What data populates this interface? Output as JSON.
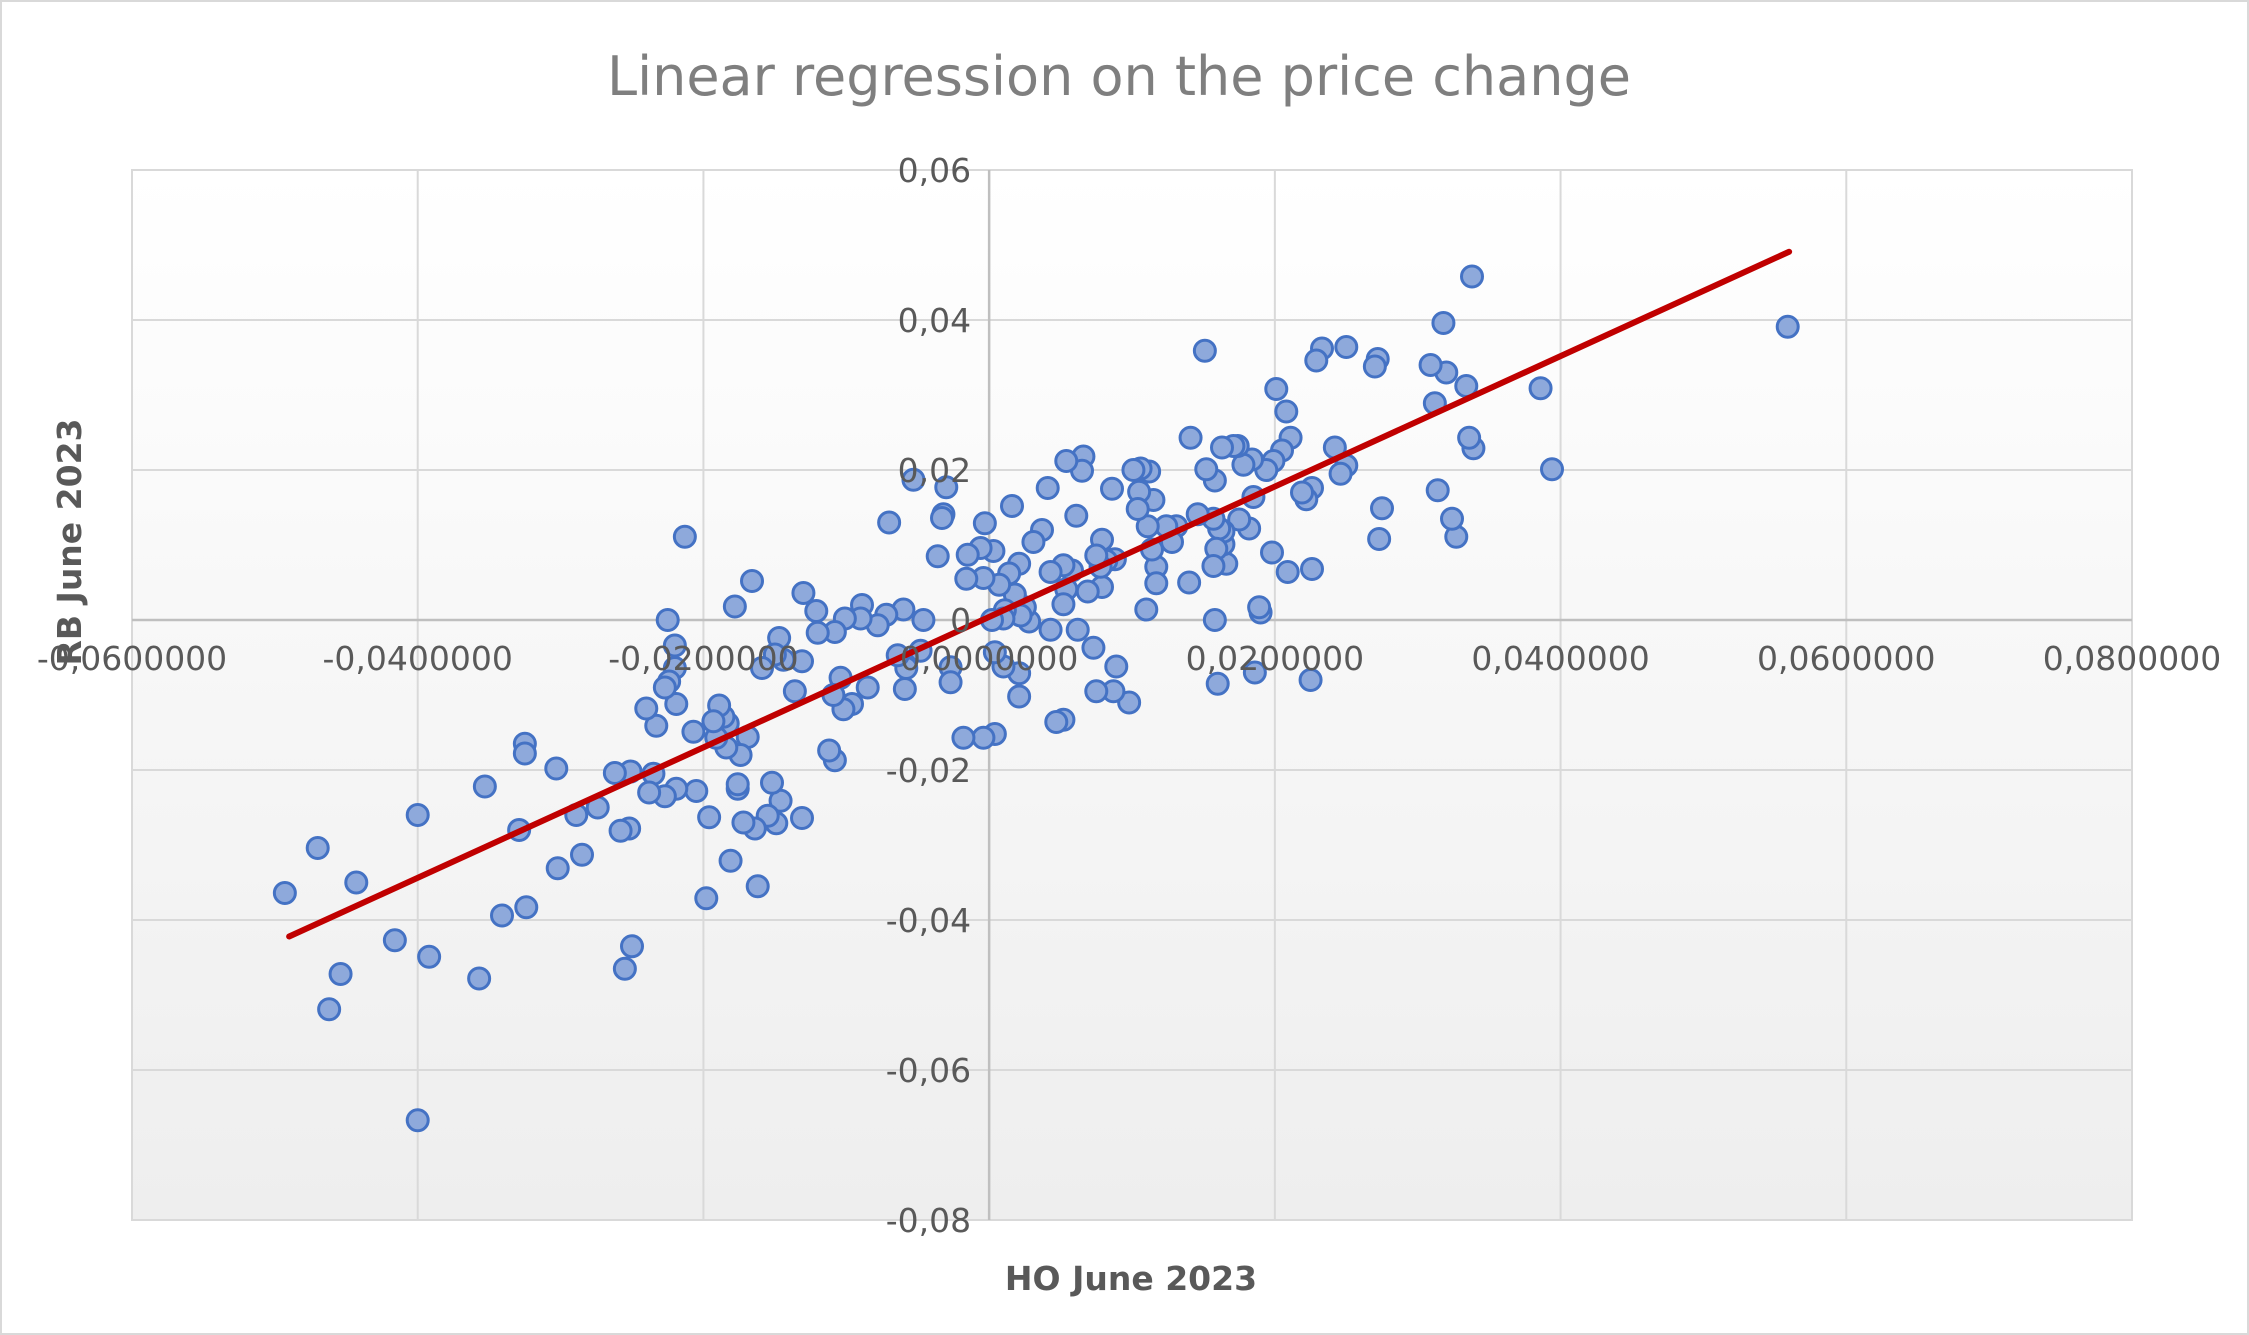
{
  "chart_data": {
    "type": "scatter",
    "title": "Linear regression on the price change",
    "xlabel": "HO June 2023",
    "ylabel": "RB June 2023",
    "xlim": [
      -0.06,
      0.08
    ],
    "ylim": [
      -0.08,
      0.06
    ],
    "xticks": [
      -0.06,
      -0.04,
      -0.02,
      0,
      0.02,
      0.04,
      0.06,
      0.08
    ],
    "xtick_labels": [
      "-0,0600000",
      "-0,0400000",
      "-0,0200000",
      "0,0000000",
      "0,0200000",
      "0,0400000",
      "0,0600000",
      "0,0800000"
    ],
    "yticks": [
      0.06,
      0.04,
      0.02,
      0,
      -0.02,
      -0.04,
      -0.06,
      -0.08
    ],
    "ytick_labels": [
      "0,06",
      "0,04",
      "0,02",
      "0",
      "-0,02",
      "-0,04",
      "-0,06",
      "-0,08"
    ],
    "grid": true,
    "legend": "none",
    "colors": {
      "marker_fill": "#8ea9db",
      "marker_edge": "#4472c4",
      "trendline": "#c00000"
    },
    "trendline": {
      "x": [
        -0.049,
        0.056
      ],
      "y": [
        -0.0422,
        0.0491
      ]
    },
    "points": [
      [
        0.0559,
        0.0391
      ],
      [
        0.0394,
        0.0201
      ],
      [
        0.0386,
        0.0309
      ],
      [
        0.0338,
        0.0458
      ],
      [
        0.0339,
        0.0229
      ],
      [
        0.0336,
        0.0243
      ],
      [
        0.0334,
        0.0312
      ],
      [
        0.0327,
        0.0111
      ],
      [
        0.0324,
        0.0135
      ],
      [
        0.032,
        0.033
      ],
      [
        0.0318,
        0.0396
      ],
      [
        0.0314,
        0.0173
      ],
      [
        0.0312,
        0.0289
      ],
      [
        0.0309,
        0.034
      ],
      [
        0.0275,
        0.0149
      ],
      [
        0.0273,
        0.0108
      ],
      [
        0.0272,
        0.0348
      ],
      [
        0.027,
        0.0338
      ],
      [
        0.025,
        0.0364
      ],
      [
        0.025,
        0.0206
      ],
      [
        0.0246,
        0.0195
      ],
      [
        0.0242,
        0.023
      ],
      [
        0.0233,
        0.0362
      ],
      [
        0.0229,
        0.0346
      ],
      [
        0.0226,
        0.0068
      ],
      [
        0.0226,
        0.0176
      ],
      [
        0.0225,
        -0.008
      ],
      [
        0.0222,
        0.0161
      ],
      [
        0.0219,
        0.017
      ],
      [
        0.0211,
        0.0243
      ],
      [
        0.0209,
        0.0064
      ],
      [
        0.0208,
        0.0278
      ],
      [
        0.0205,
        0.0226
      ],
      [
        0.0201,
        0.0308
      ],
      [
        0.0199,
        0.0212
      ],
      [
        0.0198,
        0.009
      ],
      [
        0.0194,
        0.02
      ],
      [
        0.019,
        0.001
      ],
      [
        0.0189,
        0.0017
      ],
      [
        0.0186,
        -0.007
      ],
      [
        0.0185,
        0.0164
      ],
      [
        0.0184,
        0.0214
      ],
      [
        0.0182,
        0.0122
      ],
      [
        0.0178,
        0.0207
      ],
      [
        0.0175,
        0.0134
      ],
      [
        0.0174,
        0.0232
      ],
      [
        0.0171,
        0.0232
      ],
      [
        0.0166,
        0.0075
      ],
      [
        0.0164,
        0.0101
      ],
      [
        0.0164,
        0.0118
      ],
      [
        0.0163,
        0.023
      ],
      [
        0.0161,
        0.0122
      ],
      [
        0.016,
        -0.0085
      ],
      [
        0.0159,
        0.0095
      ],
      [
        0.0158,
        0.0186
      ],
      [
        0.0158,
        0.0
      ],
      [
        0.0157,
        0.0135
      ],
      [
        0.0157,
        0.0072
      ],
      [
        0.0152,
        0.0201
      ],
      [
        0.0151,
        0.0359
      ],
      [
        0.0146,
        0.0141
      ],
      [
        0.0141,
        0.0243
      ],
      [
        0.014,
        0.005
      ],
      [
        0.0131,
        0.0125
      ],
      [
        0.0128,
        0.0104
      ],
      [
        0.0124,
        0.0125
      ],
      [
        0.0117,
        0.0071
      ],
      [
        0.0117,
        0.0049
      ],
      [
        0.0115,
        0.016
      ],
      [
        0.0114,
        0.0094
      ],
      [
        0.0112,
        0.0198
      ],
      [
        0.0111,
        0.0125
      ],
      [
        0.011,
        0.0014
      ],
      [
        0.0106,
        0.0202
      ],
      [
        0.0105,
        0.0171
      ],
      [
        0.0104,
        0.0148
      ],
      [
        0.0101,
        0.02
      ],
      [
        0.0098,
        -0.011
      ],
      [
        0.0089,
        -0.0062
      ],
      [
        0.0088,
        0.0081
      ],
      [
        0.0087,
        -0.0095
      ],
      [
        0.0086,
        0.0175
      ],
      [
        0.0082,
        0.0079
      ],
      [
        0.0079,
        0.0044
      ],
      [
        0.0079,
        0.0107
      ],
      [
        0.0078,
        0.0071
      ],
      [
        0.0075,
        0.0086
      ],
      [
        0.0075,
        -0.0095
      ],
      [
        0.0073,
        -0.0037
      ],
      [
        0.0069,
        0.0038
      ],
      [
        0.0066,
        0.0218
      ],
      [
        0.0065,
        0.0199
      ],
      [
        0.0062,
        -0.0013
      ],
      [
        0.0061,
        0.0139
      ],
      [
        0.0058,
        0.0066
      ],
      [
        0.0054,
        0.0041
      ],
      [
        0.0054,
        0.0212
      ],
      [
        0.0052,
        0.0021
      ],
      [
        0.0052,
        0.0073
      ],
      [
        0.0052,
        -0.0133
      ],
      [
        0.0047,
        -0.0136
      ],
      [
        0.0043,
        0.0064
      ],
      [
        0.0043,
        -0.0013
      ],
      [
        0.0041,
        0.0176
      ],
      [
        0.0037,
        0.012
      ],
      [
        0.0031,
        0.0104
      ],
      [
        0.0028,
        -0.0002
      ],
      [
        0.0025,
        0.0017
      ],
      [
        0.0022,
        0.0006
      ],
      [
        0.0021,
        -0.0071
      ],
      [
        0.0021,
        0.0075
      ],
      [
        0.0021,
        -0.0102
      ],
      [
        0.0018,
        0.0034
      ],
      [
        0.0016,
        0.0152
      ],
      [
        0.0014,
        0.0062
      ],
      [
        0.0011,
        0.0013
      ],
      [
        0.001,
        -0.0062
      ],
      [
        0.001,
        0.0002
      ],
      [
        0.0007,
        0.0047
      ],
      [
        0.0004,
        -0.0043
      ],
      [
        0.0004,
        -0.0152
      ],
      [
        0.0003,
        0.0092
      ],
      [
        0.0002,
        0.0
      ],
      [
        -0.0003,
        0.0129
      ],
      [
        -0.0004,
        0.0056
      ],
      [
        -0.0004,
        -0.0157
      ],
      [
        -0.0006,
        0.0096
      ],
      [
        -0.0015,
        0.0087
      ],
      [
        -0.0016,
        0.0055
      ],
      [
        -0.0018,
        -0.0157
      ],
      [
        -0.0027,
        -0.0063
      ],
      [
        -0.0027,
        -0.0083
      ],
      [
        -0.003,
        0.0177
      ],
      [
        -0.0032,
        0.0141
      ],
      [
        -0.0033,
        0.0136
      ],
      [
        -0.0036,
        0.0085
      ],
      [
        -0.0046,
        0.0
      ],
      [
        -0.0048,
        -0.0041
      ],
      [
        -0.0053,
        0.0187
      ],
      [
        -0.0058,
        -0.0064
      ],
      [
        -0.0059,
        -0.0092
      ],
      [
        -0.006,
        0.0014
      ],
      [
        -0.0064,
        -0.0047
      ],
      [
        -0.007,
        0.013
      ],
      [
        -0.0072,
        0.0007
      ],
      [
        -0.0078,
        -0.0007
      ],
      [
        -0.0085,
        -0.009
      ],
      [
        -0.0089,
        0.002
      ],
      [
        -0.009,
        0.0002
      ],
      [
        -0.0096,
        -0.0112
      ],
      [
        -0.0101,
        0.0002
      ],
      [
        -0.0102,
        -0.0119
      ],
      [
        -0.0104,
        -0.0077
      ],
      [
        -0.0108,
        -0.0187
      ],
      [
        -0.0108,
        -0.0016
      ],
      [
        -0.0109,
        -0.01
      ],
      [
        -0.0112,
        -0.0174
      ],
      [
        -0.012,
        -0.0017
      ],
      [
        -0.0121,
        0.0012
      ],
      [
        -0.013,
        0.0036
      ],
      [
        -0.0131,
        -0.0055
      ],
      [
        -0.0131,
        -0.0264
      ],
      [
        -0.0136,
        -0.0095
      ],
      [
        -0.0144,
        -0.0053
      ],
      [
        -0.0146,
        -0.0241
      ],
      [
        -0.0147,
        -0.0024
      ],
      [
        -0.0149,
        -0.0271
      ],
      [
        -0.015,
        -0.0046
      ],
      [
        -0.0152,
        -0.0217
      ],
      [
        -0.0155,
        -0.0261
      ],
      [
        -0.0159,
        -0.0064
      ],
      [
        -0.0162,
        -0.0355
      ],
      [
        -0.0164,
        -0.0278
      ],
      [
        -0.0166,
        0.0052
      ],
      [
        -0.0169,
        -0.0156
      ],
      [
        -0.0172,
        -0.027
      ],
      [
        -0.0174,
        -0.018
      ],
      [
        -0.0176,
        -0.0225
      ],
      [
        -0.0176,
        -0.0219
      ],
      [
        -0.0178,
        0.0018
      ],
      [
        -0.0181,
        -0.0321
      ],
      [
        -0.0183,
        -0.0138
      ],
      [
        -0.0184,
        -0.017
      ],
      [
        -0.0186,
        -0.0129
      ],
      [
        -0.0189,
        -0.0114
      ],
      [
        -0.0191,
        -0.0157
      ],
      [
        -0.0193,
        -0.0135
      ],
      [
        -0.0196,
        -0.0263
      ],
      [
        -0.0198,
        -0.0371
      ],
      [
        -0.0205,
        -0.0228
      ],
      [
        -0.0207,
        -0.0149
      ],
      [
        -0.0213,
        0.0111
      ],
      [
        -0.0219,
        -0.0225
      ],
      [
        -0.0219,
        -0.0112
      ],
      [
        -0.022,
        -0.0064
      ],
      [
        -0.022,
        -0.0034
      ],
      [
        -0.0224,
        -0.0082
      ],
      [
        -0.0225,
        0.0
      ],
      [
        -0.0227,
        -0.0235
      ],
      [
        -0.0227,
        -0.009
      ],
      [
        -0.0233,
        -0.0141
      ],
      [
        -0.0235,
        -0.0205
      ],
      [
        -0.0238,
        -0.023
      ],
      [
        -0.024,
        -0.0118
      ],
      [
        -0.025,
        -0.0435
      ],
      [
        -0.0251,
        -0.0202
      ],
      [
        -0.0252,
        -0.0278
      ],
      [
        -0.0255,
        -0.0465
      ],
      [
        -0.0258,
        -0.0281
      ],
      [
        -0.0262,
        -0.0204
      ],
      [
        -0.0274,
        -0.025
      ],
      [
        -0.0285,
        -0.0313
      ],
      [
        -0.0289,
        -0.026
      ],
      [
        -0.0302,
        -0.0331
      ],
      [
        -0.0303,
        -0.0198
      ],
      [
        -0.0324,
        -0.0383
      ],
      [
        -0.0325,
        -0.0165
      ],
      [
        -0.0325,
        -0.0178
      ],
      [
        -0.0329,
        -0.028
      ],
      [
        -0.0341,
        -0.0394
      ],
      [
        -0.0353,
        -0.0222
      ],
      [
        -0.0357,
        -0.0478
      ],
      [
        -0.0392,
        -0.0449
      ],
      [
        -0.04,
        -0.026
      ],
      [
        -0.04,
        -0.0667
      ],
      [
        -0.0416,
        -0.0427
      ],
      [
        -0.0443,
        -0.035
      ],
      [
        -0.0454,
        -0.0472
      ],
      [
        -0.0462,
        -0.0519
      ],
      [
        -0.047,
        -0.0304
      ],
      [
        -0.0493,
        -0.0364
      ]
    ]
  }
}
